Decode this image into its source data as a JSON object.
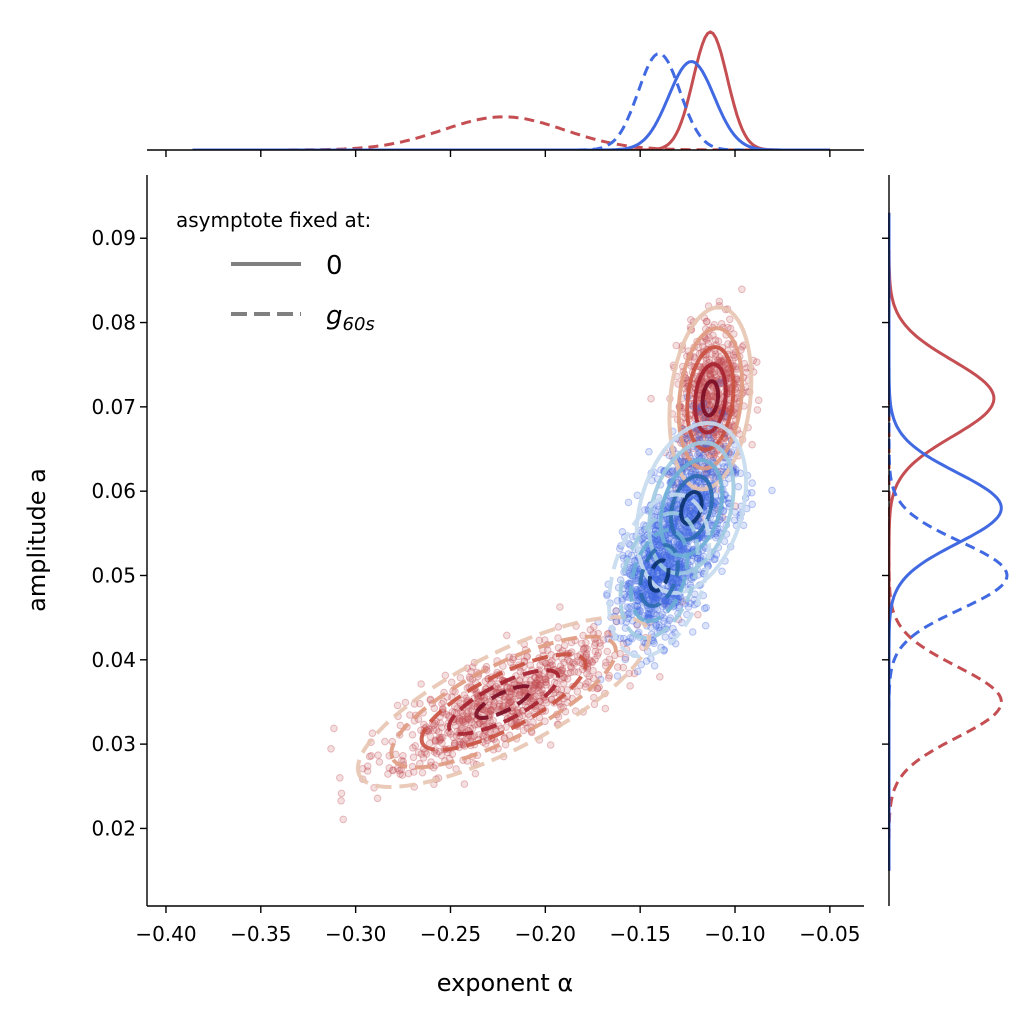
{
  "chart_data": {
    "type": "scatter",
    "xlabel": "exponent α",
    "ylabel": "amplitude a",
    "xlim": [
      -0.41,
      -0.032
    ],
    "ylim": [
      0.0108,
      0.0975
    ],
    "x_ticks": [
      -0.4,
      -0.35,
      -0.3,
      -0.25,
      -0.2,
      -0.15,
      -0.1,
      -0.05
    ],
    "x_tick_labels": [
      "−0.40",
      "−0.35",
      "−0.30",
      "−0.25",
      "−0.20",
      "−0.15",
      "−0.10",
      "−0.05"
    ],
    "y_ticks": [
      0.02,
      0.03,
      0.04,
      0.05,
      0.06,
      0.07,
      0.08,
      0.09
    ],
    "y_tick_labels": [
      "0.02",
      "0.03",
      "0.04",
      "0.05",
      "0.06",
      "0.07",
      "0.08",
      "0.09"
    ],
    "grid": false,
    "legend": {
      "title": "asymptote fixed at:",
      "placement": "top-left",
      "entries": [
        {
          "label": "0",
          "style": "solid"
        },
        {
          "label": "g",
          "subscript": "60s",
          "style": "dashed"
        }
      ]
    },
    "series": [
      {
        "color": "#c44e52",
        "style": "solid",
        "center": [
          -0.113,
          0.071
        ],
        "sd": [
          0.009,
          0.0045
        ],
        "corr": 0.2,
        "n": 600,
        "cmap": [
          "#e8c4b0",
          "#e09a80",
          "#c9503f",
          "#a5202d",
          "#7a0b22"
        ]
      },
      {
        "color": "#c44e52",
        "style": "dashed",
        "center": [
          -0.222,
          0.035
        ],
        "sd": [
          0.032,
          0.0042
        ],
        "corr": 0.78,
        "n": 750,
        "cmap": [
          "#e8c4b0",
          "#e09a80",
          "#c9503f",
          "#a5202d",
          "#7a0b22"
        ]
      },
      {
        "color": "#4169e1",
        "style": "solid",
        "center": [
          -0.123,
          0.058
        ],
        "sd": [
          0.012,
          0.0042
        ],
        "corr": 0.3,
        "n": 650,
        "cmap": [
          "#c6dbef",
          "#9ecae1",
          "#6baed6",
          "#2b6cb0",
          "#08306b"
        ]
      },
      {
        "color": "#4169e1",
        "style": "dashed",
        "center": [
          -0.14,
          0.05
        ],
        "sd": [
          0.011,
          0.004
        ],
        "corr": 0.35,
        "n": 650,
        "cmap": [
          "#c6dbef",
          "#9ecae1",
          "#6baed6",
          "#2b6cb0",
          "#08306b"
        ]
      }
    ],
    "marginal_x": {
      "xgrid_range": [
        -0.386,
        -0.05
      ]
    },
    "marginal_y": {
      "ygrid_range": [
        0.015,
        0.093
      ]
    }
  }
}
